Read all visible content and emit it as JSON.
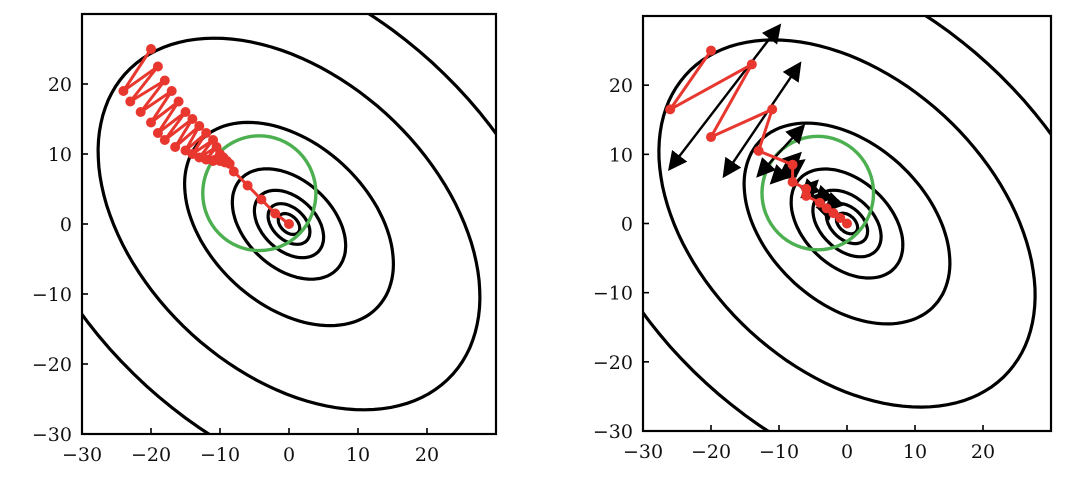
{
  "colors": {
    "path": "#e8372f",
    "circle": "#4caf50",
    "contour": "#000000",
    "arrow": "#000000"
  },
  "chart_data": [
    {
      "type": "line",
      "title": "",
      "xlabel": "",
      "ylabel": "",
      "xlim": [
        -30,
        30
      ],
      "ylim": [
        -30,
        30
      ],
      "xticks": [
        -30,
        -20,
        -10,
        0,
        10,
        20
      ],
      "yticks": [
        -30,
        -20,
        -10,
        0,
        10,
        20
      ],
      "xtick_labels": [
        "−30",
        "−20",
        "−10",
        "0",
        "10",
        "20"
      ],
      "ytick_labels": [
        "−30",
        "−20",
        "−10",
        "0",
        "10",
        "20"
      ],
      "grid": false,
      "contours": {
        "center": [
          0,
          0
        ],
        "major_axis_angle_deg": -42,
        "axis_ratio": 0.66,
        "semi_major_axes": [
          1.8,
          3.5,
          5.8,
          9.5,
          17.5,
          32,
          47
        ]
      },
      "circle": {
        "center": [
          -4.3,
          4.4
        ],
        "radius": 8.2
      },
      "series": [
        {
          "x": [
            -20,
            -24,
            -19,
            -23,
            -18,
            -21.5,
            -17,
            -20,
            -16,
            -19,
            -15,
            -18,
            -14,
            -16.5,
            -13,
            -15,
            -12,
            -14,
            -11,
            -13,
            -10.5,
            -12,
            -10,
            -11,
            -9.5,
            -10,
            -9,
            -9.3,
            -8.6,
            -8,
            -6,
            -4,
            -2,
            0
          ],
          "y": [
            25,
            19,
            22.5,
            17.5,
            20.5,
            16,
            19,
            14.5,
            17.5,
            13,
            16,
            12,
            15,
            11,
            14,
            10.5,
            13,
            10,
            12,
            9.5,
            11,
            9.2,
            10,
            9,
            9.5,
            9,
            9,
            8.8,
            8.6,
            7.5,
            5.5,
            3.5,
            1.5,
            0
          ]
        }
      ]
    },
    {
      "type": "line",
      "title": "",
      "xlabel": "",
      "ylabel": "",
      "xlim": [
        -30,
        30
      ],
      "ylim": [
        -30,
        30
      ],
      "xticks": [
        -30,
        -20,
        -10,
        0,
        10,
        20
      ],
      "yticks": [
        -30,
        -20,
        -10,
        0,
        10,
        20
      ],
      "xtick_labels": [
        "−30",
        "−20",
        "−10",
        "0",
        "10",
        "20"
      ],
      "ytick_labels": [
        "−30",
        "−20",
        "−10",
        "0",
        "10",
        "20"
      ],
      "grid": false,
      "contours": {
        "center": [
          0,
          0
        ],
        "major_axis_angle_deg": -42,
        "axis_ratio": 0.66,
        "semi_major_axes": [
          1.8,
          3.5,
          5.8,
          9.5,
          17.5,
          32,
          47
        ]
      },
      "circle": {
        "center": [
          -4.3,
          4.4
        ],
        "radius": 8.2
      },
      "series": [
        {
          "x": [
            -20,
            -26,
            -14,
            -20,
            -11,
            -13,
            -8,
            -8,
            -6,
            -6,
            -4,
            -3,
            -2,
            -1,
            0
          ],
          "y": [
            25,
            16.5,
            23,
            12.5,
            16.5,
            10.5,
            8.5,
            6,
            5,
            4,
            3,
            2.2,
            1.5,
            0.8,
            0
          ]
        }
      ],
      "arrows": [
        {
          "from": [
            -26,
            8
          ],
          "to": [
            -10,
            28.5
          ]
        },
        {
          "from": [
            -18,
            7
          ],
          "to": [
            -7,
            23
          ]
        },
        {
          "from": [
            -13,
            7
          ],
          "to": [
            -6.5,
            14
          ]
        },
        {
          "from": [
            -11,
            6
          ],
          "to": [
            -7,
            10
          ]
        },
        {
          "from": [
            -10,
            6.5
          ],
          "to": [
            -6.5,
            9
          ]
        },
        {
          "from": [
            -6.5,
            4
          ],
          "to": [
            -4.5,
            6
          ]
        },
        {
          "from": [
            -4.5,
            3
          ],
          "to": [
            -3,
            4.5
          ]
        },
        {
          "from": [
            -3,
            2
          ],
          "to": [
            -2,
            3
          ]
        }
      ]
    }
  ]
}
